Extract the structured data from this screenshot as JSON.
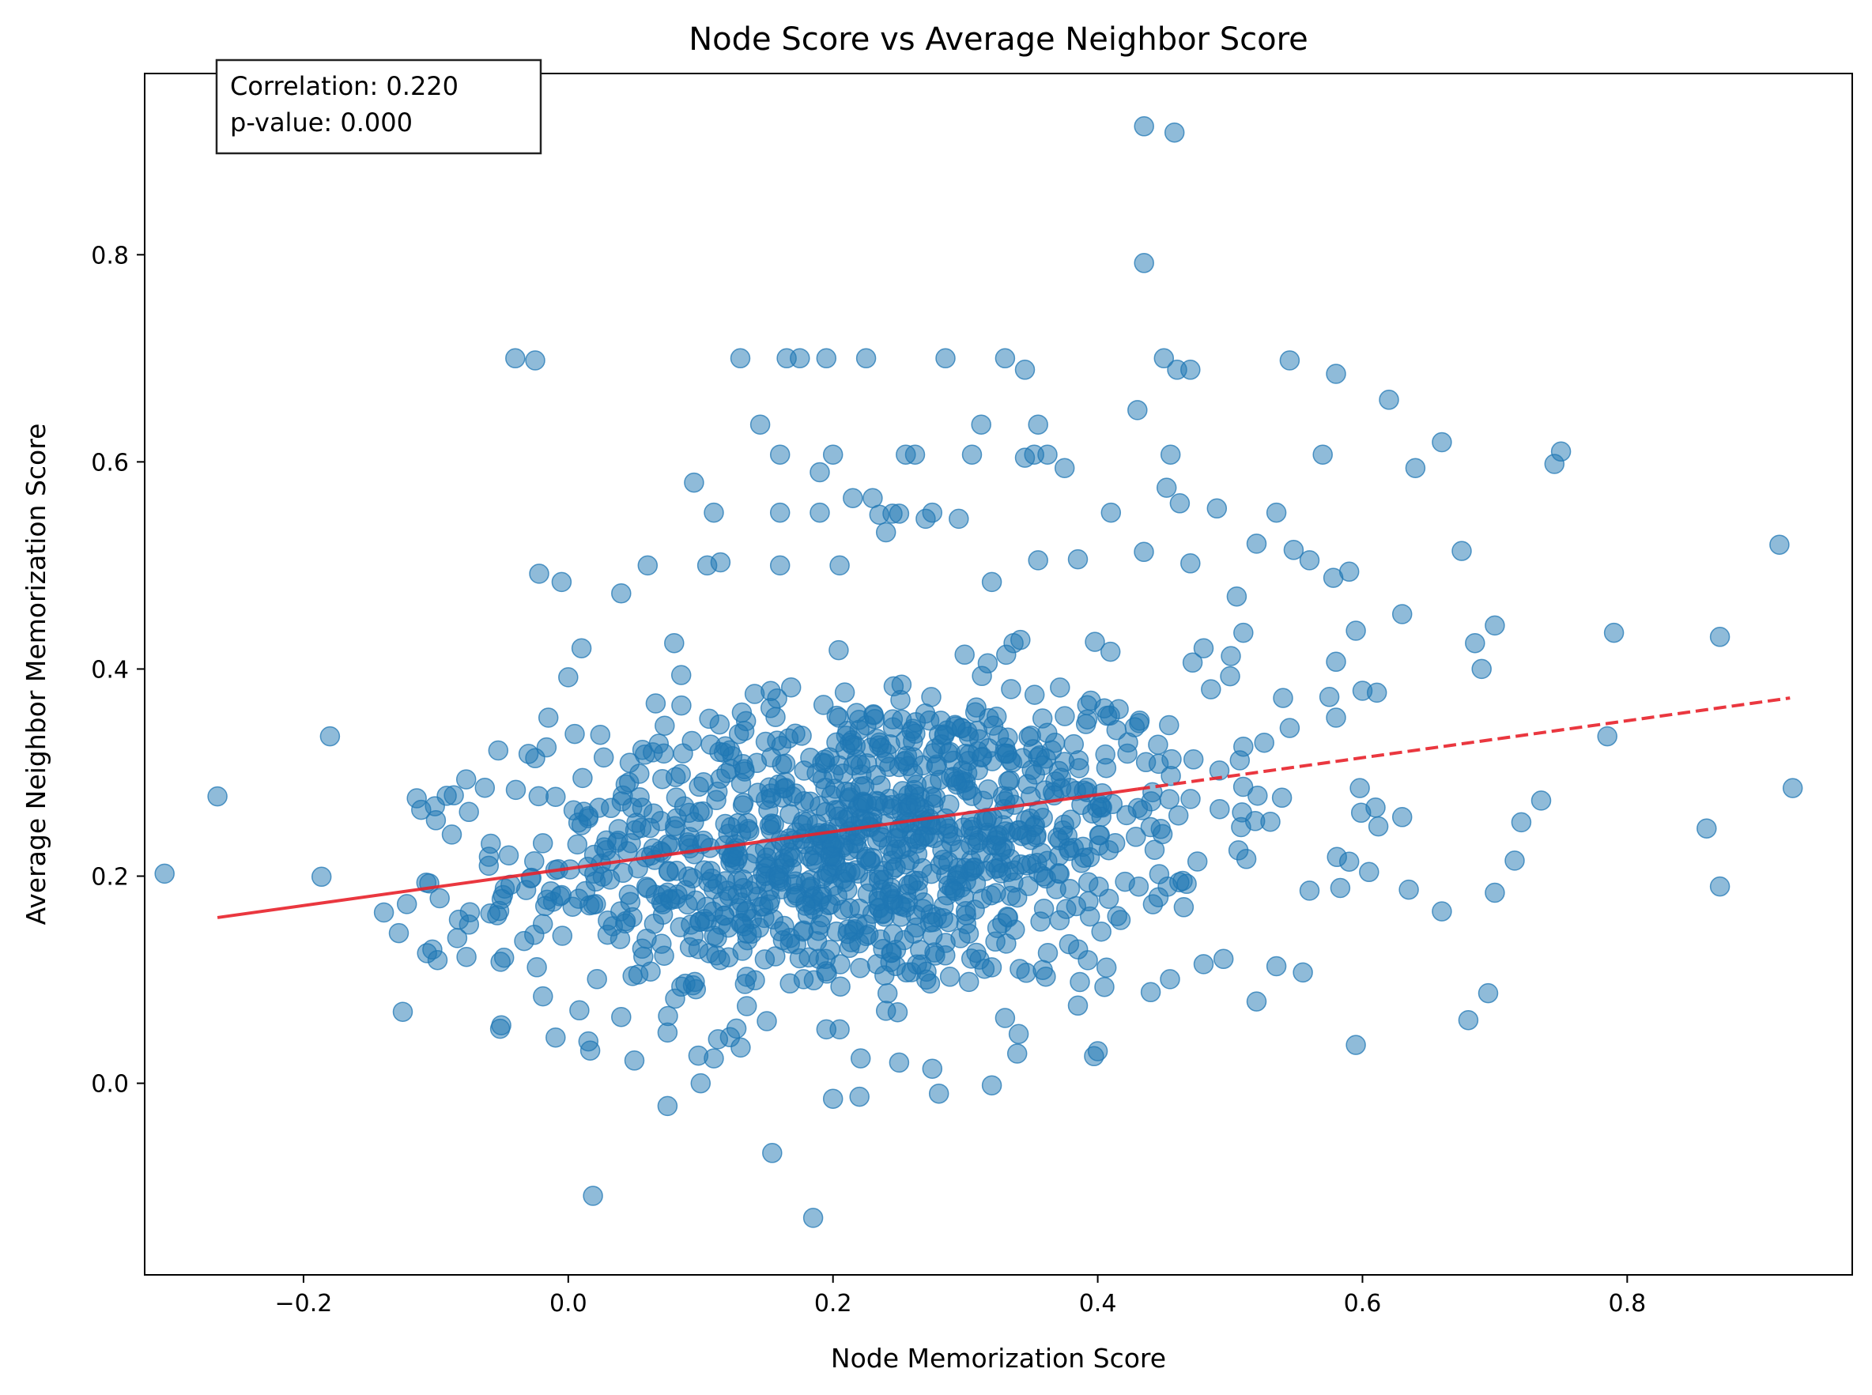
{
  "chart_data": {
    "type": "scatter",
    "title": "Node Score vs Average Neighbor Score",
    "xlabel": "Node Memorization Score",
    "ylabel": "Average Neighbor Memorization Score",
    "xlim": [
      -0.32,
      0.97
    ],
    "ylim": [
      -0.185,
      0.975
    ],
    "xticks": [
      -0.2,
      0.0,
      0.2,
      0.4,
      0.6,
      0.8
    ],
    "xtick_labels": [
      "−0.2",
      "0.0",
      "0.2",
      "0.4",
      "0.6",
      "0.8"
    ],
    "yticks": [
      0.0,
      0.2,
      0.4,
      0.6,
      0.8
    ],
    "ytick_labels": [
      "0.0",
      "0.2",
      "0.4",
      "0.6",
      "0.8"
    ],
    "grid": false,
    "annotation": {
      "line1": "Correlation: 0.220",
      "line2": "p-value: 0.000",
      "position": "top-left"
    },
    "colors": {
      "points": "#1f77b4",
      "trend": "#e8212a"
    },
    "trend_line": {
      "x": [
        -0.265,
        0.923
      ],
      "y": [
        0.16,
        0.372
      ],
      "style": "solid-then-dashed",
      "dash_from_x": 0.43
    },
    "cluster": {
      "center_x": 0.22,
      "center_y": 0.23,
      "spread_x": 0.13,
      "spread_y": 0.075,
      "count": 1100
    },
    "outliers": [
      [
        -0.265,
        0.277
      ],
      [
        -0.18,
        0.335
      ],
      [
        -0.128,
        0.145
      ],
      [
        -0.125,
        0.069
      ],
      [
        -0.105,
        0.193
      ],
      [
        -0.1,
        0.254
      ],
      [
        -0.075,
        0.262
      ],
      [
        -0.06,
        0.21
      ],
      [
        -0.045,
        0.22
      ],
      [
        -0.04,
        0.7
      ],
      [
        -0.025,
        0.698
      ],
      [
        -0.03,
        0.318
      ],
      [
        -0.022,
        0.492
      ],
      [
        -0.015,
        0.353
      ],
      [
        -0.005,
        0.484
      ],
      [
        0.0,
        0.392
      ],
      [
        0.01,
        0.42
      ],
      [
        0.04,
        0.473
      ],
      [
        0.06,
        0.5
      ],
      [
        0.08,
        0.425
      ],
      [
        0.095,
        0.58
      ],
      [
        0.105,
        0.5
      ],
      [
        0.11,
        0.551
      ],
      [
        0.115,
        0.503
      ],
      [
        0.13,
        0.7
      ],
      [
        0.145,
        0.636
      ],
      [
        0.16,
        0.607
      ],
      [
        0.16,
        0.551
      ],
      [
        0.165,
        0.7
      ],
      [
        0.175,
        0.7
      ],
      [
        0.16,
        0.5
      ],
      [
        0.19,
        0.59
      ],
      [
        0.19,
        0.551
      ],
      [
        0.195,
        0.7
      ],
      [
        0.2,
        0.607
      ],
      [
        0.205,
        0.5
      ],
      [
        0.215,
        0.565
      ],
      [
        0.225,
        0.7
      ],
      [
        0.23,
        0.565
      ],
      [
        0.235,
        0.549
      ],
      [
        0.24,
        0.532
      ],
      [
        0.245,
        0.55
      ],
      [
        0.25,
        0.55
      ],
      [
        0.255,
        0.607
      ],
      [
        0.262,
        0.607
      ],
      [
        0.27,
        0.545
      ],
      [
        0.275,
        0.551
      ],
      [
        0.285,
        0.7
      ],
      [
        0.295,
        0.545
      ],
      [
        0.305,
        0.607
      ],
      [
        0.312,
        0.636
      ],
      [
        0.32,
        0.484
      ],
      [
        0.33,
        0.7
      ],
      [
        0.345,
        0.689
      ],
      [
        0.345,
        0.604
      ],
      [
        0.352,
        0.607
      ],
      [
        0.355,
        0.636
      ],
      [
        0.362,
        0.607
      ],
      [
        0.375,
        0.594
      ],
      [
        0.355,
        0.505
      ],
      [
        0.385,
        0.506
      ],
      [
        0.41,
        0.551
      ],
      [
        0.43,
        0.65
      ],
      [
        0.435,
        0.924
      ],
      [
        0.458,
        0.918
      ],
      [
        0.435,
        0.792
      ],
      [
        0.45,
        0.7
      ],
      [
        0.46,
        0.689
      ],
      [
        0.47,
        0.689
      ],
      [
        0.455,
        0.607
      ],
      [
        0.452,
        0.575
      ],
      [
        0.462,
        0.56
      ],
      [
        0.47,
        0.502
      ],
      [
        0.49,
        0.555
      ],
      [
        0.505,
        0.47
      ],
      [
        0.52,
        0.521
      ],
      [
        0.535,
        0.551
      ],
      [
        0.545,
        0.698
      ],
      [
        0.548,
        0.515
      ],
      [
        0.56,
        0.505
      ],
      [
        0.57,
        0.607
      ],
      [
        0.58,
        0.685
      ],
      [
        0.578,
        0.488
      ],
      [
        0.59,
        0.494
      ],
      [
        0.62,
        0.66
      ],
      [
        0.595,
        0.437
      ],
      [
        0.63,
        0.453
      ],
      [
        0.64,
        0.594
      ],
      [
        0.66,
        0.619
      ],
      [
        0.675,
        0.514
      ],
      [
        0.685,
        0.425
      ],
      [
        0.7,
        0.442
      ],
      [
        0.69,
        0.4
      ],
      [
        0.745,
        0.598
      ],
      [
        0.75,
        0.61
      ],
      [
        0.79,
        0.435
      ],
      [
        0.87,
        0.431
      ],
      [
        0.915,
        0.52
      ],
      [
        0.925,
        0.285
      ],
      [
        0.86,
        0.246
      ],
      [
        0.87,
        0.19
      ],
      [
        0.785,
        0.335
      ],
      [
        0.735,
        0.273
      ],
      [
        0.72,
        0.252
      ],
      [
        0.715,
        0.215
      ],
      [
        0.7,
        0.184
      ],
      [
        0.695,
        0.087
      ],
      [
        0.68,
        0.061
      ],
      [
        0.66,
        0.166
      ],
      [
        0.635,
        0.187
      ],
      [
        0.63,
        0.257
      ],
      [
        0.612,
        0.248
      ],
      [
        0.605,
        0.204
      ],
      [
        0.598,
        0.285
      ],
      [
        0.595,
        0.037
      ],
      [
        0.59,
        0.214
      ],
      [
        0.56,
        0.186
      ],
      [
        0.555,
        0.107
      ],
      [
        0.535,
        0.113
      ],
      [
        0.52,
        0.079
      ],
      [
        0.495,
        0.12
      ],
      [
        0.48,
        0.115
      ],
      [
        0.465,
        0.17
      ],
      [
        0.44,
        0.088
      ],
      [
        0.4,
        0.031
      ],
      [
        0.405,
        0.093
      ],
      [
        0.385,
        0.075
      ],
      [
        0.33,
        0.063
      ],
      [
        0.32,
        -0.002
      ],
      [
        0.28,
        -0.01
      ],
      [
        0.275,
        0.014
      ],
      [
        0.25,
        0.02
      ],
      [
        0.22,
        -0.013
      ],
      [
        0.2,
        -0.015
      ],
      [
        0.205,
        0.052
      ],
      [
        0.195,
        0.052
      ],
      [
        0.185,
        -0.13
      ],
      [
        0.1,
        0.0
      ],
      [
        0.11,
        0.024
      ],
      [
        0.075,
        -0.022
      ],
      [
        0.05,
        0.022
      ],
      [
        0.04,
        0.064
      ],
      [
        0.075,
        0.049
      ],
      [
        0.15,
        0.06
      ],
      [
        0.24,
        0.07
      ],
      [
        0.51,
        0.435
      ],
      [
        0.54,
        0.372
      ],
      [
        0.545,
        0.343
      ],
      [
        0.575,
        0.373
      ],
      [
        0.58,
        0.353
      ],
      [
        0.6,
        0.379
      ],
      [
        0.58,
        0.407
      ],
      [
        0.5,
        0.393
      ],
      [
        0.48,
        0.42
      ],
      [
        0.51,
        0.325
      ]
    ]
  }
}
